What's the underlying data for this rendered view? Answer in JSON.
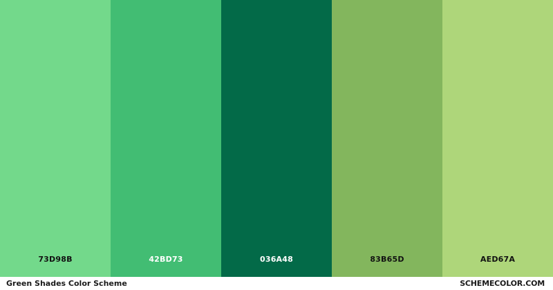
{
  "swatches": [
    {
      "hex": "#73D98B",
      "code": "73D98B",
      "text_color": "#111111"
    },
    {
      "hex": "#42BD73",
      "code": "42BD73",
      "text_color": "#ffffff"
    },
    {
      "hex": "#036A48",
      "code": "036A48",
      "text_color": "#ffffff"
    },
    {
      "hex": "#83B65D",
      "code": "83B65D",
      "text_color": "#111111"
    },
    {
      "hex": "#AED67A",
      "code": "AED67A",
      "text_color": "#111111"
    }
  ],
  "footer": {
    "title": "Green Shades Color Scheme",
    "site": "SCHEMECOLOR.COM"
  }
}
